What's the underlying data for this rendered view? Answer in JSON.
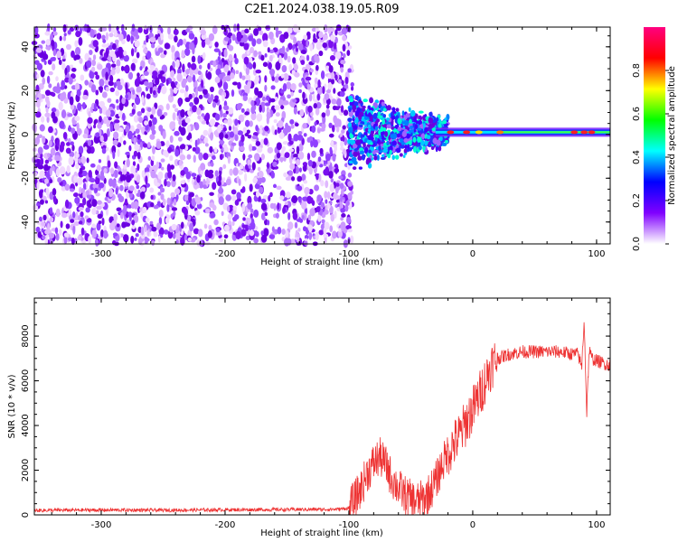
{
  "title": "C2E1.2024.038.19.05.R09",
  "chart_data": [
    {
      "type": "heatmap",
      "xlabel": "Height of straight line (km)",
      "ylabel": "Frequency (Hz)",
      "xlim": [
        -354,
        111
      ],
      "ylim": [
        -50,
        49
      ],
      "x_ticks": [
        -300,
        -200,
        -100,
        0,
        100
      ],
      "x_tick_labels": [
        "-300",
        "-200",
        "-100",
        "0",
        "100"
      ],
      "y_ticks": [
        -40,
        -20,
        0,
        20,
        40
      ],
      "y_tick_labels": [
        "-40",
        "-20",
        "0",
        "20",
        "40"
      ],
      "noise_region_km": [
        -354,
        -100
      ],
      "signal_line_hz": 1,
      "grid": false,
      "colorbar": {
        "label": "Normalized spectral amplitude",
        "range": [
          0,
          1
        ],
        "ticks": [
          0.0,
          0.2,
          0.4,
          0.6,
          0.8
        ],
        "tick_labels": [
          "0.0",
          "0.2",
          "0.4",
          "0.6",
          "0.8"
        ],
        "colors": [
          "#ffffff",
          "#8000ff",
          "#0000ff",
          "#00ffff",
          "#00ff00",
          "#ffff00",
          "#ff0000",
          "#ff0080"
        ]
      }
    },
    {
      "type": "line",
      "xlabel": "Height of straight line (km)",
      "ylabel": "SNR (10 * v/v)",
      "xlim": [
        -354,
        111
      ],
      "ylim": [
        0,
        9700
      ],
      "x_ticks": [
        -300,
        -200,
        -100,
        0,
        100
      ],
      "x_tick_labels": [
        "-300",
        "-200",
        "-100",
        "0",
        "100"
      ],
      "y_ticks": [
        0,
        2000,
        4000,
        6000,
        8000
      ],
      "y_tick_labels": [
        "0",
        "2000",
        "4000",
        "6000",
        "8000"
      ],
      "color": "#ee3333",
      "grid": false,
      "points": [
        [
          -354,
          200
        ],
        [
          -300,
          220
        ],
        [
          -250,
          210
        ],
        [
          -200,
          230
        ],
        [
          -150,
          240
        ],
        [
          -110,
          250
        ],
        [
          -100,
          300
        ],
        [
          -95,
          700
        ],
        [
          -90,
          1200
        ],
        [
          -85,
          1900
        ],
        [
          -80,
          2300
        ],
        [
          -75,
          2600
        ],
        [
          -70,
          2200
        ],
        [
          -65,
          1600
        ],
        [
          -60,
          1200
        ],
        [
          -55,
          900
        ],
        [
          -50,
          700
        ],
        [
          -45,
          600
        ],
        [
          -40,
          700
        ],
        [
          -35,
          1000
        ],
        [
          -30,
          1500
        ],
        [
          -25,
          2200
        ],
        [
          -20,
          2800
        ],
        [
          -15,
          3200
        ],
        [
          -10,
          3600
        ],
        [
          -5,
          4200
        ],
        [
          0,
          4700
        ],
        [
          5,
          5300
        ],
        [
          10,
          6000
        ],
        [
          15,
          6700
        ],
        [
          20,
          7000
        ],
        [
          30,
          7200
        ],
        [
          40,
          7300
        ],
        [
          50,
          7300
        ],
        [
          60,
          7300
        ],
        [
          70,
          7300
        ],
        [
          80,
          7200
        ],
        [
          85,
          7200
        ],
        [
          88,
          6600
        ],
        [
          90,
          8800
        ],
        [
          92,
          4500
        ],
        [
          94,
          7400
        ],
        [
          96,
          7000
        ],
        [
          100,
          6900
        ],
        [
          105,
          6800
        ],
        [
          111,
          6700
        ]
      ]
    }
  ]
}
